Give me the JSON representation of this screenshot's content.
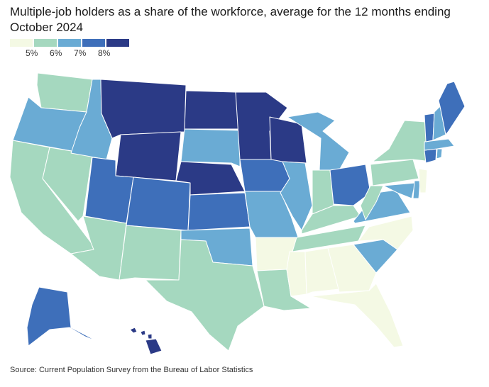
{
  "title": "Multiple-job holders as a share of the workforce, average for the 12 months ending October 2024",
  "source": "Source: Current Population Survey from the Bureau of Labor Statistics",
  "legend": {
    "bins": [
      "#f4f9e4",
      "#a5d8bf",
      "#6aabd4",
      "#3e6fba",
      "#2b3a86"
    ],
    "labels": [
      "5%",
      "6%",
      "7%",
      "8%"
    ]
  },
  "map_data": {
    "type": "choropleth",
    "region": "United States",
    "colors": {
      "b1": "#f4f9e4",
      "b2": "#a5d8bf",
      "b3": "#6aabd4",
      "b4": "#3e6fba",
      "b5": "#2b3a86"
    },
    "states": {
      "WA": "b2",
      "OR": "b3",
      "CA": "b2",
      "NV": "b2",
      "ID": "b3",
      "MT": "b5",
      "WY": "b5",
      "UT": "b4",
      "AZ": "b2",
      "CO": "b4",
      "NM": "b2",
      "ND": "b5",
      "SD": "b3",
      "NE": "b5",
      "KS": "b4",
      "OK": "b3",
      "TX": "b2",
      "MN": "b5",
      "IA": "b4",
      "MO": "b3",
      "AR": "b1",
      "LA": "b2",
      "WI": "b5",
      "IL": "b3",
      "MI": "b3",
      "IN": "b2",
      "OH": "b4",
      "KY": "b2",
      "TN": "b2",
      "MS": "b1",
      "AL": "b1",
      "GA": "b1",
      "FL": "b1",
      "SC": "b3",
      "NC": "b1",
      "VA": "b3",
      "WV": "b2",
      "MD": "b3",
      "DE": "b3",
      "PA": "b2",
      "NJ": "b1",
      "NY": "b2",
      "CT": "b4",
      "RI": "b3",
      "MA": "b3",
      "VT": "b4",
      "NH": "b3",
      "ME": "b4",
      "AK": "b4",
      "HI": "b5"
    }
  }
}
